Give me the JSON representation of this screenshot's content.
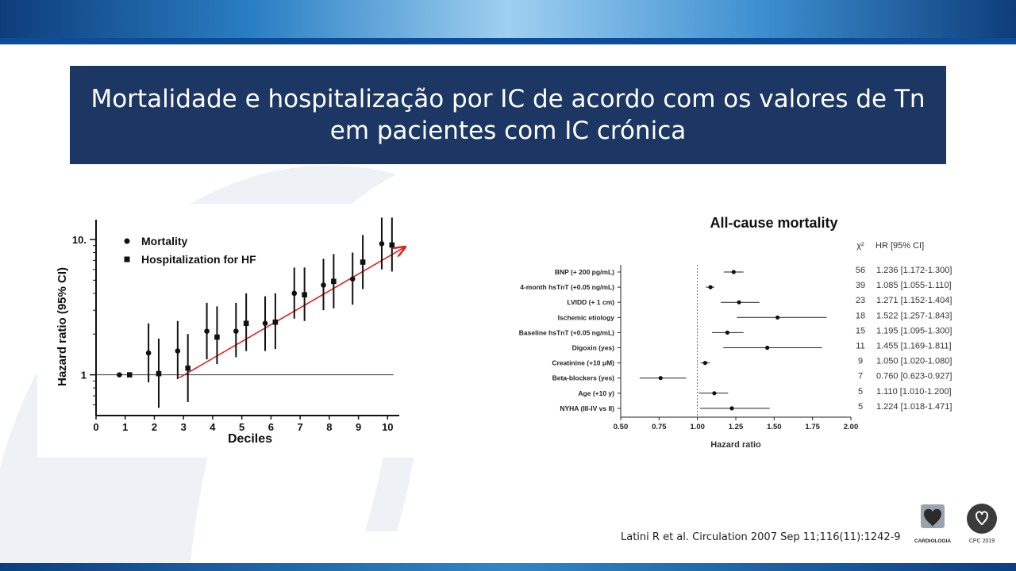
{
  "slide": {
    "title": "Mortalidade e hospitalização por IC de acordo com os valores de Tn em pacientes com IC crónica",
    "citation": "Latini R et al. Circulation 2007 Sep 11;116(11):1242-9",
    "logo_left_text": "CARDIOLOGIA",
    "logo_right_text": "CPC 2019"
  },
  "chart_data": [
    {
      "type": "scatter",
      "title": "",
      "xlabel": "Deciles",
      "ylabel": "Hazard ratio (95% CI)",
      "y_scale": "log",
      "ylim": [
        0.5,
        14
      ],
      "xlim": [
        0,
        10.4
      ],
      "x_ticks": [
        "0",
        "1",
        "2",
        "3",
        "4",
        "5",
        "6",
        "7",
        "8",
        "9",
        "10"
      ],
      "y_ticks": [
        "1",
        "10."
      ],
      "legend": {
        "placement": "top-left",
        "entries": [
          "Mortality",
          "Hospitalization for HF"
        ]
      },
      "series": [
        {
          "name": "Mortality",
          "marker": "circle",
          "points": [
            {
              "x": 0.8,
              "y": 1.0,
              "lo": 1.0,
              "hi": 1.0
            },
            {
              "x": 1.8,
              "y": 1.45,
              "lo": 0.88,
              "hi": 2.4
            },
            {
              "x": 2.8,
              "y": 1.5,
              "lo": 0.93,
              "hi": 2.5
            },
            {
              "x": 3.8,
              "y": 2.1,
              "lo": 1.3,
              "hi": 3.4
            },
            {
              "x": 4.8,
              "y": 2.1,
              "lo": 1.35,
              "hi": 3.4
            },
            {
              "x": 5.8,
              "y": 2.4,
              "lo": 1.5,
              "hi": 3.8
            },
            {
              "x": 6.8,
              "y": 4.0,
              "lo": 2.6,
              "hi": 6.2
            },
            {
              "x": 7.8,
              "y": 4.6,
              "lo": 3.0,
              "hi": 7.2
            },
            {
              "x": 8.8,
              "y": 5.1,
              "lo": 3.3,
              "hi": 8.0
            },
            {
              "x": 9.8,
              "y": 9.3,
              "lo": 6.0,
              "hi": 14.5
            }
          ]
        },
        {
          "name": "Hospitalization for HF",
          "marker": "square",
          "points": [
            {
              "x": 1.15,
              "y": 1.0,
              "lo": 1.0,
              "hi": 1.0
            },
            {
              "x": 2.15,
              "y": 1.02,
              "lo": 0.57,
              "hi": 1.85
            },
            {
              "x": 3.15,
              "y": 1.12,
              "lo": 0.63,
              "hi": 2.0
            },
            {
              "x": 4.15,
              "y": 1.9,
              "lo": 1.2,
              "hi": 3.2
            },
            {
              "x": 5.15,
              "y": 2.4,
              "lo": 1.5,
              "hi": 4.0
            },
            {
              "x": 6.15,
              "y": 2.45,
              "lo": 1.55,
              "hi": 4.0
            },
            {
              "x": 7.15,
              "y": 3.9,
              "lo": 2.5,
              "hi": 6.2
            },
            {
              "x": 8.15,
              "y": 4.9,
              "lo": 3.1,
              "hi": 7.8
            },
            {
              "x": 9.15,
              "y": 6.8,
              "lo": 4.3,
              "hi": 10.8
            },
            {
              "x": 10.15,
              "y": 9.1,
              "lo": 5.8,
              "hi": 14.5
            }
          ]
        }
      ],
      "reference_line": 1,
      "trend_arrow": {
        "from": {
          "x": 2.85,
          "y": 0.95
        },
        "to": {
          "x": 10.6,
          "y": 8.8
        },
        "color": "#e0211a"
      }
    },
    {
      "type": "scatter",
      "title": "All-cause mortality",
      "xlabel": "Hazard ratio",
      "ylabel": "",
      "xlim": [
        0.5,
        2.0
      ],
      "x_ticks": [
        "0.50",
        "0.75",
        "1.00",
        "1.25",
        "1.50",
        "1.75",
        "2.00"
      ],
      "reference_line": 1.0,
      "column_headers": {
        "chi2": "χ²",
        "hr": "HR [95% CI]"
      },
      "rows": [
        {
          "label": "BNP (+ 200 pg/mL)",
          "chi2": "56",
          "hr": 1.236,
          "lo": 1.172,
          "hi": 1.3,
          "text": "1.236 [1.172-1.300]"
        },
        {
          "label": "4-month hsTnT (+0.05 ng/mL)",
          "chi2": "39",
          "hr": 1.085,
          "lo": 1.055,
          "hi": 1.11,
          "text": "1.085 [1.055-1.110]"
        },
        {
          "label": "LVIDD (+ 1 cm)",
          "chi2": "23",
          "hr": 1.271,
          "lo": 1.152,
          "hi": 1.404,
          "text": "1.271 [1.152-1.404]"
        },
        {
          "label": "Ischemic etiology",
          "chi2": "18",
          "hr": 1.522,
          "lo": 1.257,
          "hi": 1.843,
          "text": "1.522 [1.257-1.843]"
        },
        {
          "label": "Baseline hsTnT (+0.05 ng/mL)",
          "chi2": "15",
          "hr": 1.195,
          "lo": 1.095,
          "hi": 1.3,
          "text": "1.195 [1.095-1.300]"
        },
        {
          "label": "Digoxin (yes)",
          "chi2": "11",
          "hr": 1.455,
          "lo": 1.169,
          "hi": 1.811,
          "text": "1.455 [1.169-1.811]"
        },
        {
          "label": "Creatinine (+10 μM)",
          "chi2": "9",
          "hr": 1.05,
          "lo": 1.02,
          "hi": 1.08,
          "text": "1.050 [1.020-1.080]"
        },
        {
          "label": "Beta-blockers (yes)",
          "chi2": "7",
          "hr": 0.76,
          "lo": 0.623,
          "hi": 0.927,
          "text": "0.760 [0.623-0.927]"
        },
        {
          "label": "Age (+10 y)",
          "chi2": "5",
          "hr": 1.11,
          "lo": 1.01,
          "hi": 1.2,
          "text": "1.110 [1.010-1.200]"
        },
        {
          "label": "NYHA (III-IV vs II)",
          "chi2": "5",
          "hr": 1.224,
          "lo": 1.018,
          "hi": 1.471,
          "text": "1.224 [1.018-1.471]"
        }
      ]
    }
  ]
}
